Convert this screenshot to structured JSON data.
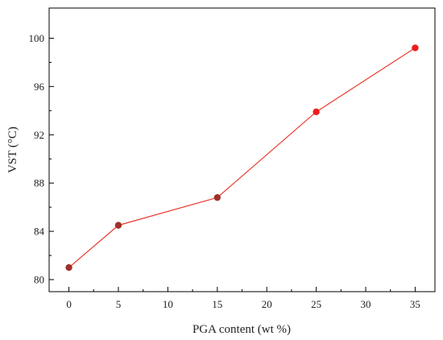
{
  "chart_data": {
    "type": "line",
    "xlabel": "PGA content (wt %)",
    "ylabel": "VST (°C)",
    "xlim": [
      -2,
      37
    ],
    "ylim": [
      79,
      102.5
    ],
    "x_ticks": [
      0,
      5,
      10,
      15,
      20,
      25,
      30,
      35
    ],
    "x_tick_labels": [
      "0",
      "5",
      "10",
      "15",
      "20",
      "25",
      "30",
      "35"
    ],
    "y_ticks": [
      80,
      84,
      88,
      92,
      96,
      100
    ],
    "y_tick_labels": [
      "80",
      "84",
      "88",
      "92",
      "96",
      "100"
    ],
    "grid": false,
    "legend": "none",
    "series": [
      {
        "x": [
          0,
          5,
          15,
          25,
          35
        ],
        "values": [
          81.0,
          84.5,
          86.8,
          93.9,
          99.2
        ],
        "line_color": "#e83a2e",
        "marker_colors": [
          "#a0302a",
          "#a0302a",
          "#a0302a",
          "#ee1c1c",
          "#ee1c1c"
        ]
      }
    ]
  }
}
